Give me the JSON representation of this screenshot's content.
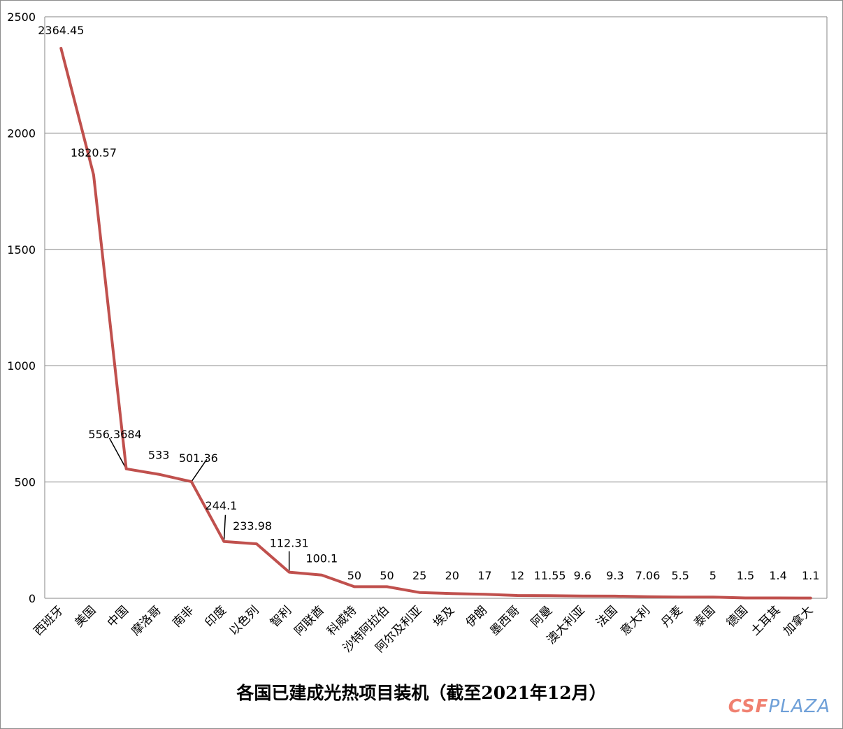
{
  "chart_data": {
    "type": "line",
    "title": "各国已建成光热项目装机（截至2021年12月）",
    "xlabel": "",
    "ylabel": "",
    "ylim": [
      0,
      2500
    ],
    "yticks": [
      0,
      500,
      1000,
      1500,
      2000,
      2500
    ],
    "grid": true,
    "line_color": "#c0504d",
    "categories": [
      "西班牙",
      "美国",
      "中国",
      "摩洛哥",
      "南非",
      "印度",
      "以色列",
      "智利",
      "阿联酋",
      "科威特",
      "沙特阿拉伯",
      "阿尔及利亚",
      "埃及",
      "伊朗",
      "墨西哥",
      "阿曼",
      "澳大利亚",
      "法国",
      "意大利",
      "丹麦",
      "泰国",
      "德国",
      "土耳其",
      "加拿大"
    ],
    "values": [
      2364.45,
      1820.57,
      556.3684,
      533,
      501.36,
      244.1,
      233.98,
      112.31,
      100.1,
      50,
      50,
      25,
      20,
      17,
      12,
      11.55,
      9.6,
      9.3,
      7.06,
      5.5,
      5,
      1.5,
      1.4,
      1.1
    ],
    "data_labels": [
      "2364.45",
      "1820.57",
      "556.3684",
      "533",
      "501.36",
      "244.1",
      "233.98",
      "112.31",
      "100.1",
      "50",
      "50",
      "25",
      "20",
      "17",
      "12",
      "11.55",
      "9.6",
      "9.3",
      "7.06",
      "5.5",
      "5",
      "1.5",
      "1.4",
      "1.1"
    ]
  },
  "watermark": {
    "part1": "CSF",
    "part2": "PLAZA"
  }
}
